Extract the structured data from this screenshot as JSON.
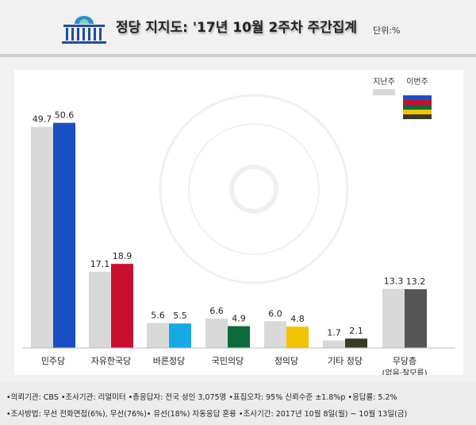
{
  "header": {
    "title": "정당 지지도: '17년 10월 2주차 주간집계",
    "unit": "단위:%"
  },
  "chart_data": {
    "type": "bar",
    "categories": [
      "민주당",
      "자유한국당",
      "바른정당",
      "국민의당",
      "정의당",
      "기타 정당",
      "무당층"
    ],
    "category_sublabels": [
      "",
      "",
      "",
      "",
      "",
      "",
      "(없음·잘모름)"
    ],
    "series": [
      {
        "name": "지난주",
        "values": [
          49.7,
          17.1,
          5.6,
          6.6,
          6.0,
          1.7,
          13.3
        ],
        "color": "#d9d9d9"
      },
      {
        "name": "이번주",
        "values": [
          50.6,
          18.9,
          5.5,
          4.9,
          4.8,
          2.1,
          13.2
        ],
        "colors": [
          "#1a4fc4",
          "#c8102e",
          "#17a9e6",
          "#0b6b3a",
          "#f4c300",
          "#3a3a28",
          "#555555"
        ]
      }
    ],
    "legend_placement": "top-right",
    "grid": false
  },
  "legend_swatch_colors": [
    "#1a4fc4",
    "#c8102e",
    "#0b6b3a",
    "#f4c300",
    "#3a3a28"
  ],
  "footer": {
    "line1": "•의뢰기관: CBS •조사기관: 리얼미터 •총응답자: 전국 성인 3,075명 •표집오차: 95% 신뢰수준 ±1.8%p •응답률: 5.2%",
    "line2": "•조사방법: 무선 전화면접(6%), 무선(76%)• 유선(18%) 자동응답 혼용 •조사기간: 2017년 10월 8일(월) ~ 10월 13일(금)"
  }
}
